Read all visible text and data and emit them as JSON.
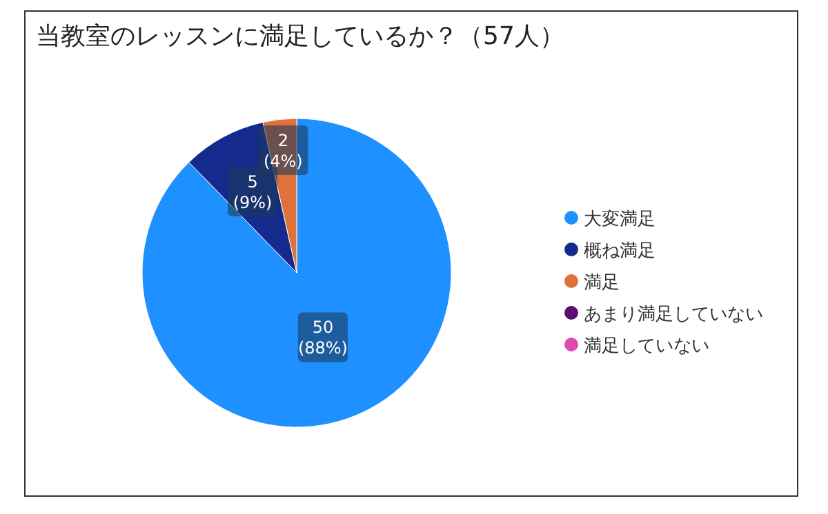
{
  "chart_data": {
    "type": "pie",
    "title": "当教室のレッスンに満足しているか？（57人）",
    "categories": [
      "大変満足",
      "概ね満足",
      "満足",
      "あまり満足していない",
      "満足していない"
    ],
    "values": [
      50,
      5,
      2,
      0,
      0
    ],
    "colors": [
      "#1e90ff",
      "#142a8c",
      "#e0713a",
      "#5e0f6e",
      "#dd4bb0"
    ],
    "value_labels": [
      "50\n(88%)",
      "5\n(9%)",
      "2\n(4%)",
      null,
      null
    ],
    "legend": "right"
  }
}
